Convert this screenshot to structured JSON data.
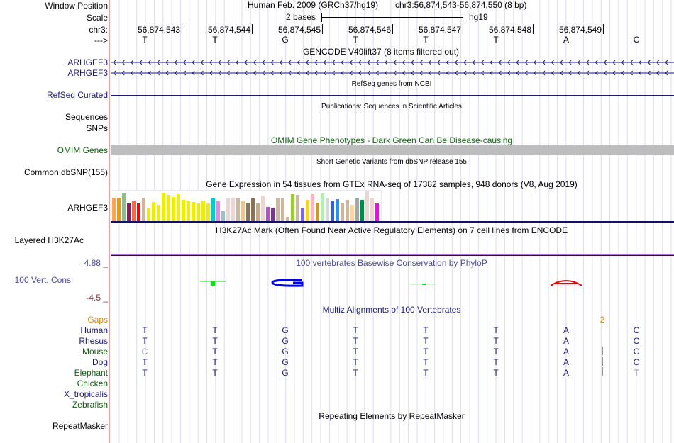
{
  "header": {
    "window_position_label": "Window Position",
    "scale_label": "Scale",
    "chrom_label": "chr3:",
    "strand_label": "--->",
    "assembly_title": "Human Feb. 2009 (GRCh37/hg19)",
    "position": "chr3:56,874,543-56,874,550 (8 bp)",
    "scale_text": "2 bases",
    "assembly": "hg19",
    "coordinates": [
      "56,874,543",
      "56,874,544",
      "56,874,545",
      "56,874,546",
      "56,874,547",
      "56,874,548",
      "56,874,549"
    ],
    "bases": [
      "T",
      "T",
      "G",
      "T",
      "T",
      "T",
      "A",
      "C"
    ]
  },
  "tracks": {
    "gencode": {
      "title": "GENCODE V49lift37 (8 items filtered out)",
      "items": [
        "ARHGEF3",
        "ARHGEF3"
      ]
    },
    "refseq": {
      "title": "RefSeq genes from NCBI",
      "label": "RefSeq Curated"
    },
    "publications": {
      "title": "Publications: Sequences in Scientific Articles",
      "labels": [
        "Sequences",
        "SNPs"
      ]
    },
    "omim": {
      "title": "OMIM Gene Phenotypes - Dark Green Can Be Disease-causing",
      "label": "OMIM Genes"
    },
    "dbsnp": {
      "title": "Short Genetic Variants from dbSNP release 155",
      "label": "Common dbSNP(155)"
    },
    "gtex": {
      "title": "Gene Expression in 54 tissues from GTEx RNA-seq of 17382 samples, 948 donors (V8, Aug 2019)",
      "label": "ARHGEF3",
      "bars": [
        {
          "color": "#ffa54f",
          "value": 0.78
        },
        {
          "color": "#ee9a00",
          "value": 0.78
        },
        {
          "color": "#8fbc8f",
          "value": 0.94
        },
        {
          "color": "#8b1c62",
          "value": 0.58
        },
        {
          "color": "#ee6a50",
          "value": 0.68
        },
        {
          "color": "#ff0000",
          "value": 0.58
        },
        {
          "color": "#cdb79e",
          "value": 0.78
        },
        {
          "color": "#eeee00",
          "value": 0.46
        },
        {
          "color": "#eeee00",
          "value": 0.64
        },
        {
          "color": "#eeee00",
          "value": 0.54
        },
        {
          "color": "#eeee00",
          "value": 0.94
        },
        {
          "color": "#eeee00",
          "value": 0.86
        },
        {
          "color": "#eeee00",
          "value": 0.8
        },
        {
          "color": "#eeee00",
          "value": 0.88
        },
        {
          "color": "#eeee00",
          "value": 0.7
        },
        {
          "color": "#eeee00",
          "value": 0.66
        },
        {
          "color": "#eeee00",
          "value": 0.64
        },
        {
          "color": "#eeee00",
          "value": 0.58
        },
        {
          "color": "#eeee00",
          "value": 0.68
        },
        {
          "color": "#eeee00",
          "value": 0.58
        },
        {
          "color": "#00cdcd",
          "value": 0.76
        },
        {
          "color": "#ee82ee",
          "value": 0.66
        },
        {
          "color": "#9ac0cd",
          "value": 0.34
        },
        {
          "color": "#eed5d2",
          "value": 0.76
        },
        {
          "color": "#eed5d2",
          "value": 0.78
        },
        {
          "color": "#cdb79e",
          "value": 0.76
        },
        {
          "color": "#eec591",
          "value": 0.66
        },
        {
          "color": "#8b7355",
          "value": 0.62
        },
        {
          "color": "#8b7355",
          "value": 0.76
        },
        {
          "color": "#cdaa7d",
          "value": 0.58
        },
        {
          "color": "#eed5d2",
          "value": 0.84
        },
        {
          "color": "#b452cd",
          "value": 0.48
        },
        {
          "color": "#7a378b",
          "value": 0.46
        },
        {
          "color": "#cdb79e",
          "value": 0.74
        },
        {
          "color": "#cdb79e",
          "value": 0.74
        },
        {
          "color": "#cdb79e",
          "value": 0.16
        },
        {
          "color": "#9acd32",
          "value": 0.88
        },
        {
          "color": "#cdb79e",
          "value": 0.86
        },
        {
          "color": "#7b68ee",
          "value": 0.46
        },
        {
          "color": "#ffd700",
          "value": 0.7
        },
        {
          "color": "#ffb6c1",
          "value": 0.92
        },
        {
          "color": "#cd9b1d",
          "value": 0.62
        },
        {
          "color": "#b4eeb4",
          "value": 0.94
        },
        {
          "color": "#d9d9d9",
          "value": 0.74
        },
        {
          "color": "#3a5fcd",
          "value": 0.66
        },
        {
          "color": "#1e90ff",
          "value": 0.72
        },
        {
          "color": "#cdb79e",
          "value": 0.62
        },
        {
          "color": "#cdb79e",
          "value": 0.7
        },
        {
          "color": "#ffd39b",
          "value": 0.54
        },
        {
          "color": "#a6a6a6",
          "value": 0.76
        },
        {
          "color": "#008b45",
          "value": 0.7
        },
        {
          "color": "#eed5d2",
          "value": 1.0
        },
        {
          "color": "#eed5d2",
          "value": 0.74
        },
        {
          "color": "#ff00ff",
          "value": 0.6
        }
      ]
    },
    "h3k27ac": {
      "title": "H3K27Ac Mark (Often Found Near Active Regulatory Elements) on 7 cell lines from ENCODE",
      "label": "Layered H3K27Ac"
    },
    "phylop": {
      "title": "100 vertebrates Basewise Conservation by PhyloP",
      "label": "100 Vert. Cons",
      "max": "4.88 _",
      "min": "-4.5 _"
    },
    "multiz": {
      "title": "Multiz Alignments of 100 Vertebrates",
      "gaps_label": "Gaps",
      "gap_count": "2",
      "species": [
        {
          "name": "Human",
          "color": "#1a1a7a",
          "seq": [
            "T",
            "T",
            "G",
            "T",
            "T",
            "T",
            "A",
            "C"
          ]
        },
        {
          "name": "Rhesus",
          "color": "#1a1a7a",
          "seq": [
            "T",
            "T",
            "G",
            "T",
            "T",
            "T",
            "A",
            "C"
          ]
        },
        {
          "name": "Mouse",
          "color": "#116011",
          "seq": [
            "C",
            "T",
            "G",
            "T",
            "T",
            "T",
            "A",
            "C"
          ]
        },
        {
          "name": "Dog",
          "color": "#1a1a7a",
          "seq": [
            "T",
            "T",
            "G",
            "T",
            "T",
            "T",
            "A",
            "C"
          ]
        },
        {
          "name": "Elephant",
          "color": "#116011",
          "seq": [
            "T",
            "T",
            "G",
            "T",
            "T",
            "T",
            "A",
            "T"
          ]
        },
        {
          "name": "Chicken",
          "color": "#116011",
          "seq": []
        },
        {
          "name": "X_tropicalis",
          "color": "#1a1a7a",
          "seq": []
        },
        {
          "name": "Zebrafish",
          "color": "#116011",
          "seq": []
        }
      ]
    },
    "repeatmasker": {
      "title": "Repeating Elements by RepeatMasker",
      "label": "RepeatMasker"
    }
  },
  "colors": {
    "navy": "#1a1a7a",
    "omim_green": "#116011",
    "omim_bar": "#bdbdbd",
    "gaps_orange": "#e08a00",
    "phylop_label": "#4a4a9a",
    "phylop_min": "#8b3030",
    "h3k27_line": "#b070e0"
  }
}
